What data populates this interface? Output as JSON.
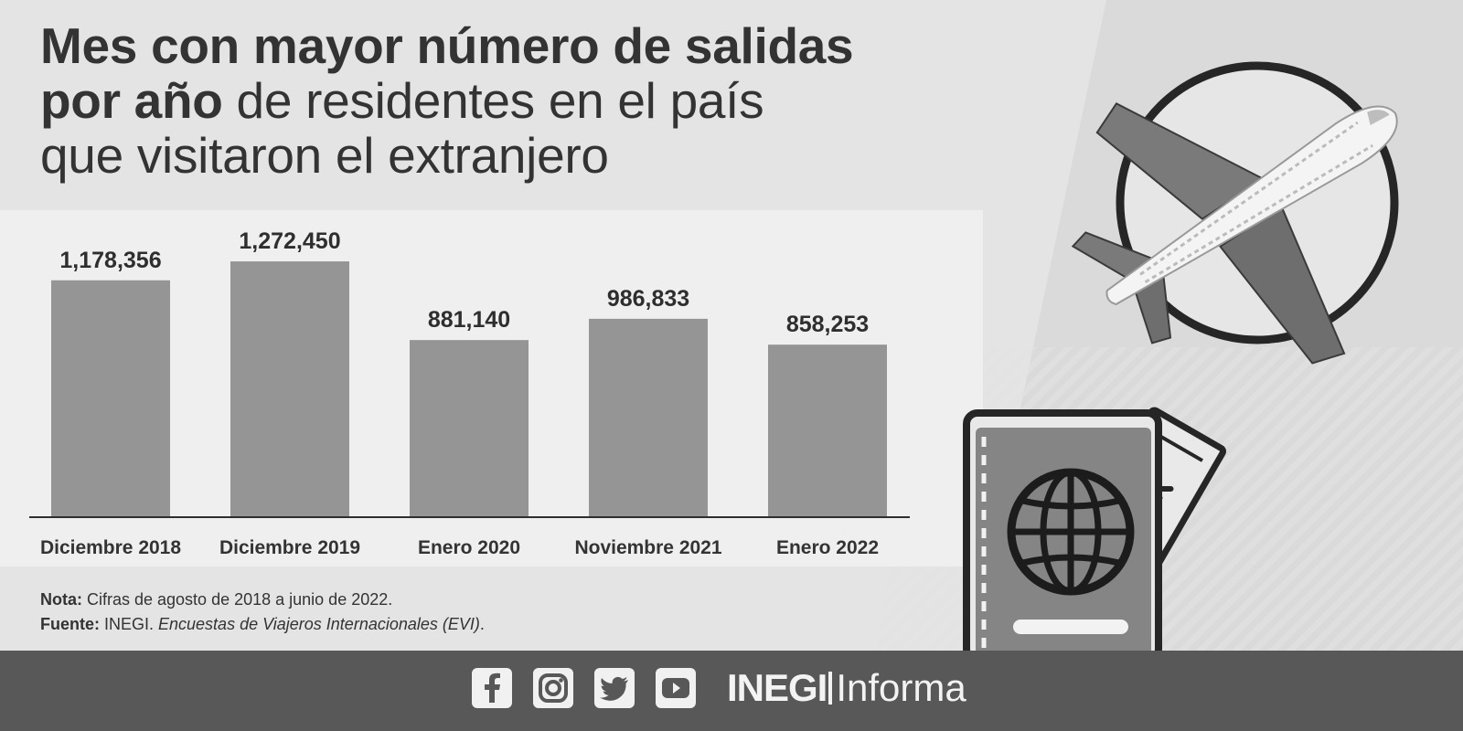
{
  "title": {
    "bold_line1": "Mes con mayor número de salidas",
    "bold_line2": "por año",
    "rest_line2": " de residentes en el país",
    "line3": "que visitaron el extranjero"
  },
  "chart_data": {
    "type": "bar",
    "categories": [
      "Diciembre 2018",
      "Diciembre 2019",
      "Enero 2020",
      "Noviembre 2021",
      "Enero 2022"
    ],
    "values": [
      1178356,
      1272450,
      881140,
      986833,
      858253
    ],
    "value_labels": [
      "1,178,356",
      "1,272,450",
      "881,140",
      "986,833",
      "858,253"
    ],
    "ylim": [
      0,
      1300000
    ],
    "grid": false,
    "bar_color": "#959595"
  },
  "notes": {
    "nota_label": "Nota:",
    "nota_text": " Cifras de agosto de 2018 a junio de 2022.",
    "fuente_label": "Fuente:",
    "fuente_plain": " INEGI. ",
    "fuente_italic": "Encuestas de Viajeros Internacionales (EVI)",
    "fuente_end": "."
  },
  "footer": {
    "social_icons": [
      "facebook-icon",
      "instagram-icon",
      "twitter-icon",
      "youtube-icon"
    ],
    "brand_bold": "INEGI",
    "brand_light": "Informa",
    "background": "#585858"
  },
  "illustration": {
    "items": [
      "airplane",
      "passport",
      "boarding-pass"
    ]
  }
}
